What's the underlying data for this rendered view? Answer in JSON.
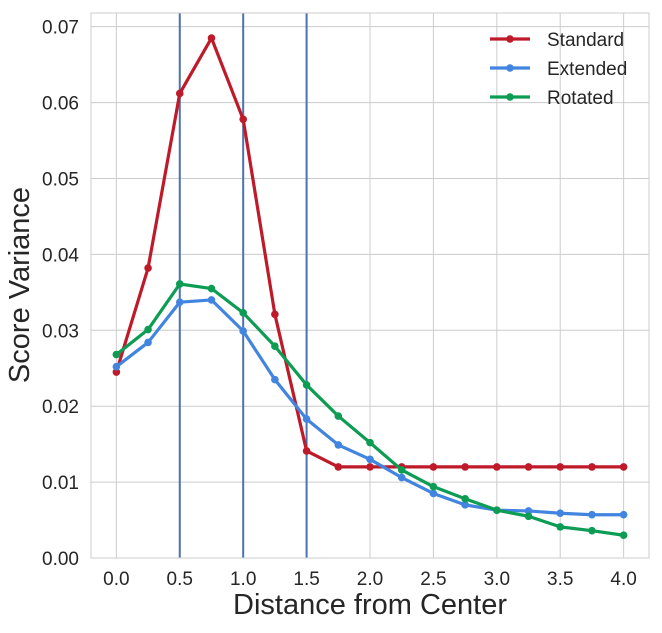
{
  "chart_data": {
    "type": "line",
    "title": "",
    "xlabel": "Distance from Center",
    "ylabel": "Score Variance",
    "xlim": [
      -0.2,
      4.2
    ],
    "ylim": [
      0.0,
      0.0718
    ],
    "grid": true,
    "legend_position": "top-right",
    "x": [
      0.0,
      0.25,
      0.5,
      0.75,
      1.0,
      1.25,
      1.5,
      1.75,
      2.0,
      2.25,
      2.5,
      2.75,
      3.0,
      3.25,
      3.5,
      3.75,
      4.0
    ],
    "xticks": [
      0.0,
      0.5,
      1.0,
      1.5,
      2.0,
      2.5,
      3.0,
      3.5,
      4.0
    ],
    "xtick_labels": [
      "0.0",
      "0.5",
      "1.0",
      "1.5",
      "2.0",
      "2.5",
      "3.0",
      "3.5",
      "4.0"
    ],
    "yticks": [
      0.0,
      0.01,
      0.02,
      0.03,
      0.04,
      0.05,
      0.06,
      0.07
    ],
    "ytick_labels": [
      "0.00",
      "0.01",
      "0.02",
      "0.03",
      "0.04",
      "0.05",
      "0.06",
      "0.07"
    ],
    "vlines": [
      0.5,
      1.0,
      1.5
    ],
    "vline_color": "#4c72b0",
    "series": [
      {
        "name": "Standard",
        "color": "#be1a2a",
        "values": [
          0.0245,
          0.0382,
          0.0612,
          0.0685,
          0.0578,
          0.0321,
          0.0141,
          0.012,
          0.012,
          0.012,
          0.012,
          0.012,
          0.012,
          0.012,
          0.012,
          0.012,
          0.012
        ]
      },
      {
        "name": "Extended",
        "color": "#4285e0",
        "values": [
          0.0252,
          0.0284,
          0.0337,
          0.034,
          0.0299,
          0.0235,
          0.0183,
          0.0149,
          0.013,
          0.0106,
          0.0085,
          0.007,
          0.0063,
          0.0062,
          0.0059,
          0.0057,
          0.0057
        ]
      },
      {
        "name": "Rotated",
        "color": "#0d9c54",
        "values": [
          0.0268,
          0.0301,
          0.0361,
          0.0355,
          0.0323,
          0.0279,
          0.0228,
          0.0187,
          0.0152,
          0.0116,
          0.0094,
          0.0078,
          0.0063,
          0.0055,
          0.0041,
          0.0036,
          0.003
        ]
      }
    ]
  }
}
